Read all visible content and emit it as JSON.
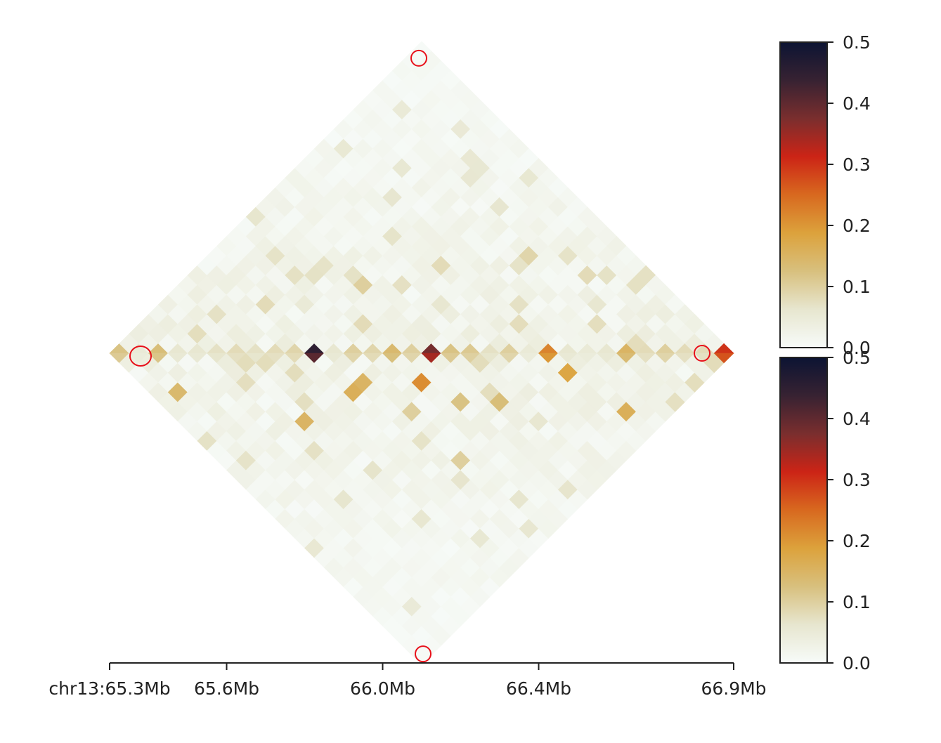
{
  "chart_data": {
    "type": "heatmap",
    "title": "",
    "region": "chr13:65.3Mb-66.9Mb",
    "xlabel": "",
    "ylabel": "",
    "x_axis": {
      "unit": "Mb",
      "range": [
        65.3,
        66.9
      ],
      "ticks": [
        {
          "value": 65.3,
          "label": "chr13:65.3Mb"
        },
        {
          "value": 65.6,
          "label": "65.6Mb"
        },
        {
          "value": 66.0,
          "label": "66.0Mb"
        },
        {
          "value": 66.4,
          "label": "66.4Mb"
        },
        {
          "value": 66.9,
          "label": "66.9Mb"
        }
      ]
    },
    "matrix": {
      "n_bins": 32,
      "bin_size_mb": 0.05,
      "upper_triangle_track": "top",
      "lower_triangle_track": "bottom",
      "baseline_value": 0.02,
      "diagonal_values": [
        0.12,
        0.05,
        0.13,
        0.06,
        0.06,
        0.07,
        0.08,
        0.07,
        0.08,
        0.09,
        0.45,
        0.06,
        0.1,
        0.09,
        0.14,
        0.1,
        0.38,
        0.12,
        0.11,
        0.07,
        0.1,
        0.05,
        0.22,
        0.06,
        0.05,
        0.06,
        0.15,
        0.08,
        0.1,
        0.08,
        0.08,
        0.3
      ],
      "top_hotspots": [
        {
          "i": 12,
          "j": 21,
          "value": 0.08
        },
        {
          "i": 16,
          "j": 26,
          "value": 0.09
        },
        {
          "i": 9,
          "j": 16,
          "value": 0.1
        },
        {
          "i": 5,
          "j": 10,
          "value": 0.08
        },
        {
          "i": 20,
          "j": 28,
          "value": 0.08
        },
        {
          "i": 3,
          "j": 7,
          "value": 0.07
        },
        {
          "i": 11,
          "j": 14,
          "value": 0.08
        },
        {
          "i": 18,
          "j": 23,
          "value": 0.07
        },
        {
          "i": 14,
          "j": 19,
          "value": 0.06
        },
        {
          "i": 22,
          "j": 27,
          "value": 0.06
        },
        {
          "i": 7,
          "j": 12,
          "value": 0.05
        }
      ],
      "bottom_hotspots": [
        {
          "i": 1,
          "j": 5,
          "value": 0.14
        },
        {
          "i": 6,
          "j": 13,
          "value": 0.15
        },
        {
          "i": 10,
          "j": 14,
          "value": 0.16
        },
        {
          "i": 11,
          "j": 14,
          "value": 0.15
        },
        {
          "i": 14,
          "j": 17,
          "value": 0.21
        },
        {
          "i": 12,
          "j": 18,
          "value": 0.1
        },
        {
          "i": 17,
          "j": 22,
          "value": 0.13
        },
        {
          "i": 12,
          "j": 23,
          "value": 0.1
        },
        {
          "i": 22,
          "j": 24,
          "value": 0.18
        },
        {
          "i": 23,
          "j": 29,
          "value": 0.16
        },
        {
          "i": 15,
          "j": 20,
          "value": 0.12
        },
        {
          "i": 5,
          "j": 15,
          "value": 0.07
        },
        {
          "i": 18,
          "j": 25,
          "value": 0.06
        }
      ]
    },
    "colorbars": [
      {
        "name": "top",
        "range": [
          0.0,
          0.5
        ],
        "ticks": [
          0.0,
          0.1,
          0.2,
          0.3,
          0.4,
          0.5
        ],
        "tick_labels": [
          "0.0",
          "0.1",
          "0.2",
          "0.3",
          "0.4",
          "0.5"
        ]
      },
      {
        "name": "bottom",
        "range": [
          0.0,
          0.5
        ],
        "ticks": [
          0.0,
          0.1,
          0.2,
          0.3,
          0.4,
          0.5
        ],
        "tick_labels": [
          "0.0",
          "0.1",
          "0.2",
          "0.3",
          "0.4",
          "0.5"
        ]
      }
    ],
    "colormap": [
      "#f7fbf9",
      "#e7e6cf",
      "#d8c07e",
      "#dca23c",
      "#d8691f",
      "#cc2416",
      "#7a2e2e",
      "#372232",
      "#0c1433"
    ],
    "annotation_color": "#e8101a",
    "annotations": [
      {
        "shape": "circle",
        "bin_i": 15,
        "bin_j": 15,
        "track": "top-apex"
      },
      {
        "shape": "circle",
        "bin_i": 0,
        "bin_j": 0,
        "track": "diagonal-left"
      },
      {
        "shape": "circle",
        "bin_i": 31,
        "bin_j": 31,
        "track": "diagonal-right"
      },
      {
        "shape": "circle",
        "bin_i": 15,
        "bin_j": 15,
        "track": "bottom-apex"
      }
    ]
  }
}
